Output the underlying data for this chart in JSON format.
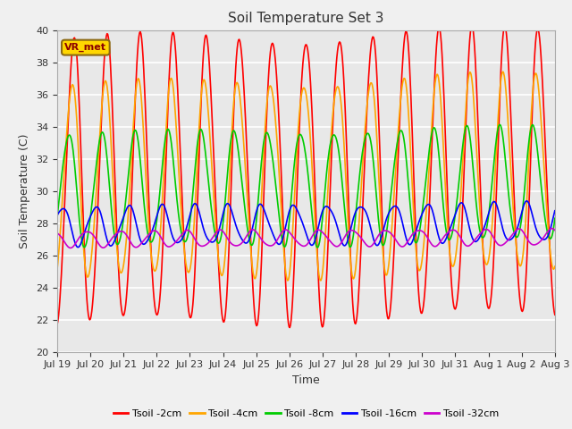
{
  "title": "Soil Temperature Set 3",
  "xlabel": "Time",
  "ylabel": "Soil Temperature (C)",
  "ylim": [
    20,
    40
  ],
  "yticks": [
    20,
    22,
    24,
    26,
    28,
    30,
    32,
    34,
    36,
    38,
    40
  ],
  "annotation": "VR_met",
  "annotation_color": "#8B0000",
  "annotation_bg": "#FFD700",
  "annotation_border": "#8B6914",
  "bg_color": "#E8E8E8",
  "fig_color": "#F0F0F0",
  "grid_color": "white",
  "series": [
    {
      "label": "Tsoil -2cm",
      "color": "#FF0000",
      "lw": 1.2
    },
    {
      "label": "Tsoil -4cm",
      "color": "#FFA500",
      "lw": 1.2
    },
    {
      "label": "Tsoil -8cm",
      "color": "#00CC00",
      "lw": 1.2
    },
    {
      "label": "Tsoil -16cm",
      "color": "#0000FF",
      "lw": 1.2
    },
    {
      "label": "Tsoil -32cm",
      "color": "#CC00CC",
      "lw": 1.2
    }
  ],
  "xtick_labels": [
    "Jul 19",
    "Jul 20",
    "Jul 21",
    "Jul 22",
    "Jul 23",
    "Jul 24",
    "Jul 25",
    "Jul 26",
    "Jul 27",
    "Jul 28",
    "Jul 29",
    "Jul 30",
    "Jul 31",
    "Aug 1",
    "Aug 2",
    "Aug 3"
  ],
  "n_points": 720,
  "mean_2cm": 30.5,
  "amp_2cm": 8.8,
  "phase_2cm": 0.0,
  "mean_4cm": 30.5,
  "amp_4cm": 6.0,
  "phase_4cm": 0.06,
  "mean_8cm": 30.0,
  "amp_8cm": 3.5,
  "phase_8cm": 0.16,
  "mean_16cm": 27.8,
  "amp_16cm": 1.2,
  "phase_16cm": 0.35,
  "mean_32cm": 27.0,
  "amp_32cm": 0.5,
  "phase_32cm": 0.6,
  "trend_slope": 0.04
}
